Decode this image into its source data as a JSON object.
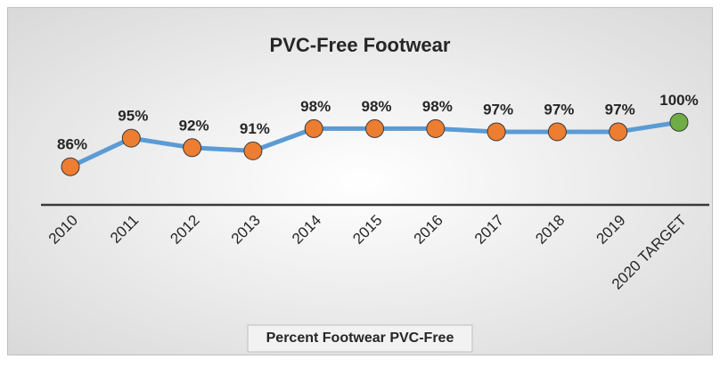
{
  "chart_data": {
    "type": "line",
    "title": "PVC-Free Footwear",
    "categories": [
      "2010",
      "2011",
      "2012",
      "2013",
      "2014",
      "2015",
      "2016",
      "2017",
      "2018",
      "2019",
      "2020 TARGET"
    ],
    "series": [
      {
        "name": "Percent Footwear PVC-Free",
        "color": "#5b9bd5",
        "values": [
          86,
          95,
          92,
          91,
          98,
          98,
          98,
          97,
          97,
          97,
          100
        ],
        "value_labels": [
          "86%",
          "95%",
          "92%",
          "91%",
          "98%",
          "98%",
          "98%",
          "97%",
          "97%",
          "97%",
          "100%"
        ],
        "marker_colors": [
          "#ed7d31",
          "#ed7d31",
          "#ed7d31",
          "#ed7d31",
          "#ed7d31",
          "#ed7d31",
          "#ed7d31",
          "#ed7d31",
          "#ed7d31",
          "#ed7d31",
          "#70ad47"
        ]
      }
    ],
    "ylim": [
      74,
      104
    ],
    "legend": "bottom"
  }
}
